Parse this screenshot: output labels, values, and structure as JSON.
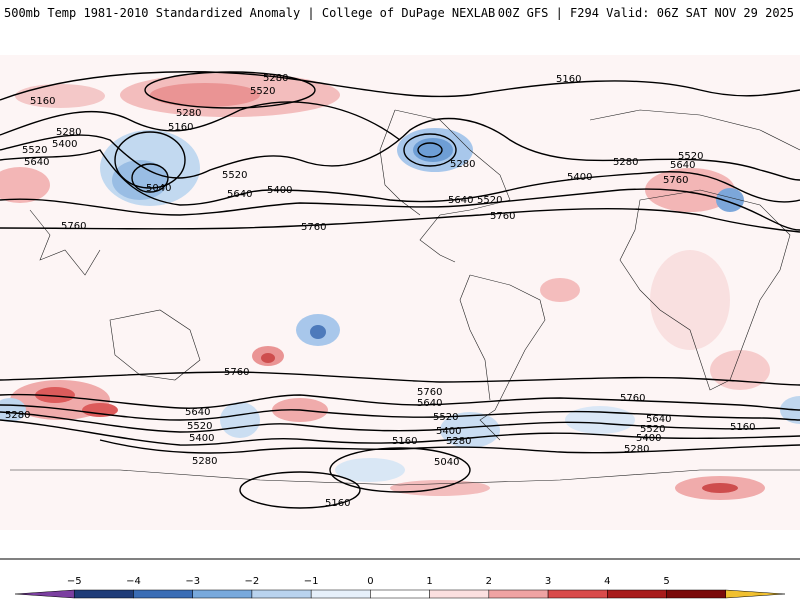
{
  "header": {
    "left_title": "500mb Temp 1981-2010 Standardized Anomaly | College of DuPage NEXLAB",
    "right_title": "00Z GFS | F294 Valid: 06Z SAT NOV 29 2025"
  },
  "contour_labels": {
    "l5160_nw": "5160",
    "l5280_nw": "5280",
    "l5400_nw": "5400",
    "l5520_nw": "5520",
    "l5640_nw": "5640",
    "l5160_np": "5160",
    "l5280_np": "5280",
    "l5040_np": "5040",
    "l5280_top": "5280",
    "l5520_top": "5520",
    "l5160_top": "5160",
    "l5520_pac": "5520",
    "l5640_pac": "5640",
    "l5400_pac": "5400",
    "l5760_pac": "5760",
    "l5760_w": "5760",
    "l5280_na": "5280",
    "l5640_na": "5640",
    "l5520_na": "5520",
    "l5760_na": "5760",
    "l5400_atl": "5400",
    "l5280_eu": "5280",
    "l5520_eu": "5520",
    "l5640_eu": "5640",
    "l5760_eu": "5760",
    "l5760_sp": "5760",
    "l5640_sp": "5640",
    "l5520_sp": "5520",
    "l5400_sp": "5400",
    "l5280_sp": "5280",
    "l5280_sw": "5280",
    "l5760_sa": "5760",
    "l5640_sa": "5640",
    "l5520_sa": "5520",
    "l5400_sa": "5400",
    "l5280_sa": "5280",
    "l5160_sa": "5160",
    "l5040_sa": "5040",
    "l5160_ant": "5160",
    "l5760_se": "5760",
    "l5640_se": "5640",
    "l5520_se": "5520",
    "l5400_se": "5400",
    "l5280_se": "5280",
    "l5160_se": "5160"
  },
  "colorbar": {
    "ticks": [
      "−5",
      "−4",
      "−3",
      "−2",
      "−1",
      "0",
      "1",
      "2",
      "3",
      "4",
      "5"
    ],
    "colors": [
      "#7b3fa0",
      "#1f3c78",
      "#3a6db5",
      "#78a9dc",
      "#b9d3ee",
      "#e6f0fa",
      "#ffffff",
      "#fbe0e0",
      "#efa3a3",
      "#d94b4b",
      "#a81c1c",
      "#7a0a0a",
      "#f0c030"
    ]
  }
}
